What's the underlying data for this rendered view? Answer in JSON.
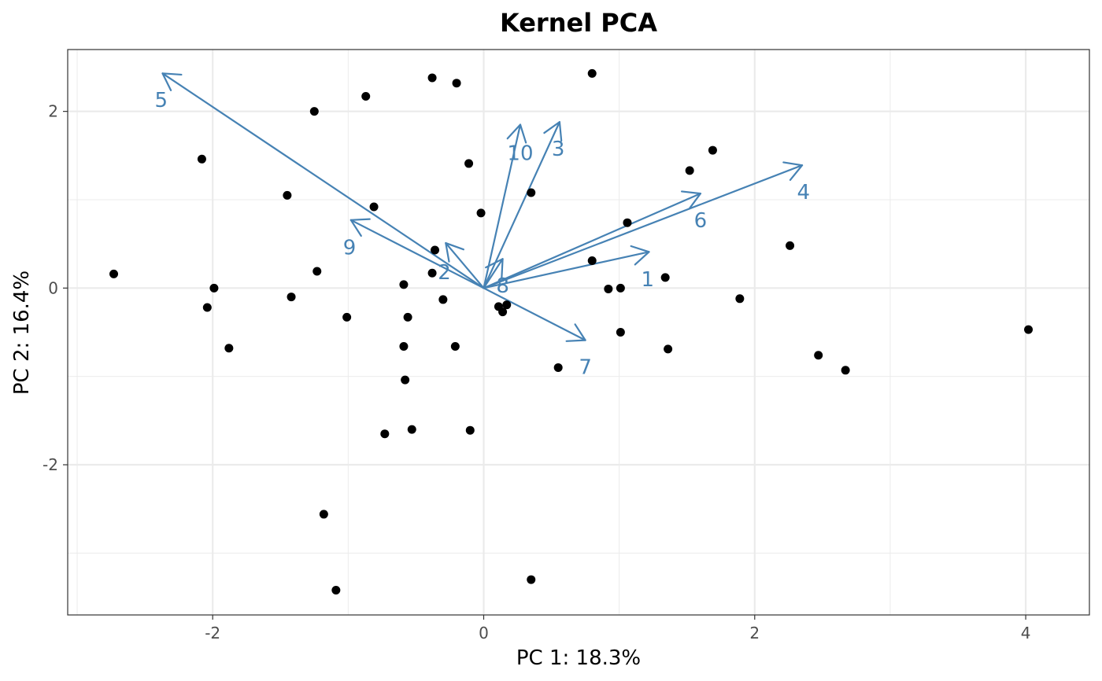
{
  "chart_data": {
    "type": "scatter",
    "title": "Kernel PCA",
    "xlabel": "PC 1: 18.3%",
    "ylabel": "PC 2: 16.4%",
    "xlim": [
      -3.07,
      4.47
    ],
    "ylim": [
      -3.7,
      2.7
    ],
    "x_ticks": [
      -2,
      0,
      2,
      4
    ],
    "y_ticks": [
      -2,
      0,
      2
    ],
    "x_tick_labels": [
      "-2",
      "0",
      "2",
      "4"
    ],
    "y_tick_labels": [
      "-2",
      "0",
      "2"
    ],
    "grid": true,
    "colors": {
      "points": "#000000",
      "arrows": "#4682b4",
      "grid": "#ebebeb",
      "border": "#333333"
    },
    "points": [
      {
        "x": -2.73,
        "y": 0.16
      },
      {
        "x": -2.08,
        "y": 1.46
      },
      {
        "x": -2.04,
        "y": -0.22
      },
      {
        "x": -1.99,
        "y": 0.0
      },
      {
        "x": -1.88,
        "y": -0.68
      },
      {
        "x": -1.45,
        "y": 1.05
      },
      {
        "x": -1.42,
        "y": -0.1
      },
      {
        "x": -1.25,
        "y": 2.0
      },
      {
        "x": -1.23,
        "y": 0.19
      },
      {
        "x": -1.18,
        "y": -2.56
      },
      {
        "x": -1.09,
        "y": -3.42
      },
      {
        "x": -1.01,
        "y": -0.33
      },
      {
        "x": -0.87,
        "y": 2.17
      },
      {
        "x": -0.81,
        "y": 0.92
      },
      {
        "x": -0.73,
        "y": -1.65
      },
      {
        "x": -0.59,
        "y": 0.04
      },
      {
        "x": -0.59,
        "y": -0.66
      },
      {
        "x": -0.58,
        "y": -1.04
      },
      {
        "x": -0.56,
        "y": -0.33
      },
      {
        "x": -0.53,
        "y": -1.6
      },
      {
        "x": -0.38,
        "y": 2.38
      },
      {
        "x": -0.38,
        "y": 0.17
      },
      {
        "x": -0.36,
        "y": 0.43
      },
      {
        "x": -0.3,
        "y": -0.13
      },
      {
        "x": -0.2,
        "y": 2.32
      },
      {
        "x": -0.21,
        "y": -0.66
      },
      {
        "x": -0.11,
        "y": 1.41
      },
      {
        "x": -0.1,
        "y": -1.61
      },
      {
        "x": -0.02,
        "y": 0.85
      },
      {
        "x": 0.11,
        "y": -0.21
      },
      {
        "x": 0.14,
        "y": -0.27
      },
      {
        "x": 0.17,
        "y": -0.19
      },
      {
        "x": 0.35,
        "y": 1.08
      },
      {
        "x": 0.35,
        "y": -3.3
      },
      {
        "x": 0.55,
        "y": -0.9
      },
      {
        "x": 0.8,
        "y": 2.43
      },
      {
        "x": 0.8,
        "y": 0.31
      },
      {
        "x": 0.92,
        "y": -0.01
      },
      {
        "x": 1.01,
        "y": 0.0
      },
      {
        "x": 1.01,
        "y": -0.5
      },
      {
        "x": 1.06,
        "y": 0.74
      },
      {
        "x": 1.34,
        "y": 0.12
      },
      {
        "x": 1.36,
        "y": -0.69
      },
      {
        "x": 1.52,
        "y": 1.33
      },
      {
        "x": 1.69,
        "y": 1.56
      },
      {
        "x": 1.89,
        "y": -0.12
      },
      {
        "x": 2.26,
        "y": 0.48
      },
      {
        "x": 2.47,
        "y": -0.76
      },
      {
        "x": 2.67,
        "y": -0.93
      },
      {
        "x": 4.02,
        "y": -0.47
      }
    ],
    "loadings": [
      {
        "label": "1",
        "x": 1.22,
        "y": 0.41,
        "label_x": 1.21,
        "label_y": 0.1
      },
      {
        "label": "2",
        "x": -0.28,
        "y": 0.51,
        "label_x": -0.29,
        "label_y": 0.18
      },
      {
        "label": "3",
        "x": 0.56,
        "y": 1.88,
        "label_x": 0.55,
        "label_y": 1.58
      },
      {
        "label": "4",
        "x": 2.35,
        "y": 1.39,
        "label_x": 2.36,
        "label_y": 1.09
      },
      {
        "label": "5",
        "x": -2.37,
        "y": 2.43,
        "label_x": -2.38,
        "label_y": 2.13
      },
      {
        "label": "6",
        "x": 1.6,
        "y": 1.07,
        "label_x": 1.6,
        "label_y": 0.77
      },
      {
        "label": "7",
        "x": 0.75,
        "y": -0.59,
        "label_x": 0.75,
        "label_y": -0.89
      },
      {
        "label": "8",
        "x": 0.14,
        "y": 0.33,
        "label_x": 0.14,
        "label_y": 0.03
      },
      {
        "label": "9",
        "x": -0.98,
        "y": 0.77,
        "label_x": -0.99,
        "label_y": 0.46
      },
      {
        "label": "10",
        "x": 0.27,
        "y": 1.85,
        "label_x": 0.27,
        "label_y": 1.53
      }
    ]
  }
}
